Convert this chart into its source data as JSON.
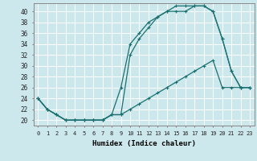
{
  "xlabel": "Humidex (Indice chaleur)",
  "bg_color": "#cce8ec",
  "grid_color": "#ffffff",
  "line_color": "#1a7070",
  "x_ticks": [
    0,
    1,
    2,
    3,
    4,
    5,
    6,
    7,
    8,
    9,
    10,
    11,
    12,
    13,
    14,
    15,
    16,
    17,
    18,
    19,
    20,
    21,
    22,
    23
  ],
  "y_ticks": [
    20,
    22,
    24,
    26,
    28,
    30,
    32,
    34,
    36,
    38,
    40
  ],
  "xlim": [
    -0.5,
    23.5
  ],
  "ylim": [
    19.0,
    41.5
  ],
  "line_top_x": [
    0,
    1,
    2,
    3,
    4,
    5,
    6,
    7,
    8,
    9,
    10,
    11,
    12,
    13,
    14,
    15,
    16,
    17,
    18,
    19,
    20,
    21,
    22,
    23
  ],
  "line_top_y": [
    24,
    22,
    21,
    20,
    20,
    20,
    20,
    20,
    21,
    21,
    32,
    35,
    37,
    39,
    40,
    41,
    41,
    41,
    41,
    40,
    35,
    29,
    26,
    26
  ],
  "line_mid_x": [
    0,
    1,
    2,
    3,
    4,
    5,
    6,
    7,
    8,
    9,
    10,
    11,
    12,
    13,
    14,
    15,
    16,
    17,
    18,
    19,
    20,
    21,
    22,
    23
  ],
  "line_mid_y": [
    24,
    22,
    21,
    20,
    20,
    20,
    20,
    20,
    21,
    26,
    34,
    36,
    38,
    39,
    40,
    40,
    40,
    41,
    41,
    40,
    35,
    29,
    26,
    26
  ],
  "line_low_x": [
    0,
    1,
    2,
    3,
    4,
    5,
    6,
    7,
    8,
    9,
    10,
    11,
    12,
    13,
    14,
    15,
    16,
    17,
    18,
    19,
    20,
    21,
    22,
    23
  ],
  "line_low_y": [
    24,
    22,
    21,
    20,
    20,
    20,
    20,
    20,
    21,
    21,
    22,
    23,
    24,
    25,
    26,
    27,
    28,
    29,
    30,
    31,
    26,
    26,
    26,
    26
  ],
  "markersize": 3.0,
  "lw": 0.9
}
